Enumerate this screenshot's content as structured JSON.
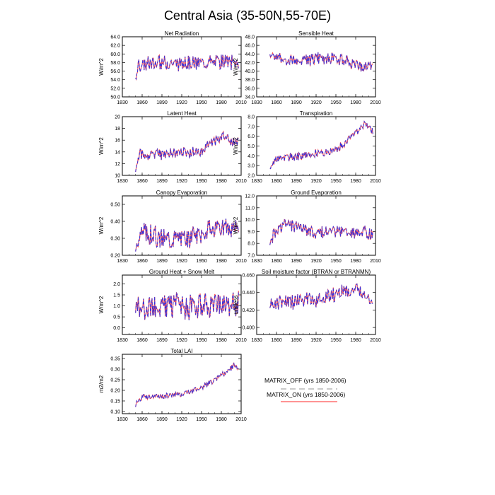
{
  "title": "Central Asia (35-50N,55-70E)",
  "colors": {
    "matrix_off": "#3333dd",
    "matrix_on": "#ff5555"
  },
  "legend": {
    "matrix_off": "MATRIX_OFF (yrs 1850-2006)",
    "matrix_on": "MATRIX_ON (yrs 1850-2006)"
  },
  "chart_data": [
    {
      "type": "line",
      "title": "Net Radiation",
      "ylabel": "W/m^2",
      "xlim": [
        1830,
        2010
      ],
      "ylim": [
        50,
        64
      ],
      "xticks": [
        "1830",
        "1860",
        "1890",
        "1920",
        "1950",
        "1980",
        "2010"
      ],
      "yticks": [
        "50.0",
        "52.0",
        "54.0",
        "56.0",
        "58.0",
        "60.0",
        "62.0",
        "64.0"
      ],
      "x_start": 1850,
      "x_end": 2006,
      "base": [
        [
          1850,
          55.0
        ],
        [
          1855,
          57.5
        ],
        [
          1880,
          57.6
        ],
        [
          1920,
          58.0
        ],
        [
          1950,
          57.8
        ],
        [
          1980,
          58.2
        ],
        [
          2006,
          57.8
        ]
      ],
      "amp": 1.6,
      "drift": 0,
      "series": [
        {
          "name": "MATRIX_OFF"
        },
        {
          "name": "MATRIX_ON"
        }
      ]
    },
    {
      "type": "line",
      "title": "Sensible Heat",
      "ylabel": "W/m^2",
      "xlim": [
        1830,
        2010
      ],
      "ylim": [
        34,
        48
      ],
      "xticks": [
        "1830",
        "1860",
        "1890",
        "1920",
        "1950",
        "1980",
        "2010"
      ],
      "yticks": [
        "34.0",
        "36.0",
        "38.0",
        "40.0",
        "42.0",
        "44.0",
        "46.0",
        "48.0"
      ],
      "x_start": 1850,
      "x_end": 2006,
      "base": [
        [
          1850,
          44.0
        ],
        [
          1870,
          42.8
        ],
        [
          1900,
          42.5
        ],
        [
          1940,
          43.2
        ],
        [
          1970,
          42.0
        ],
        [
          1990,
          40.5
        ],
        [
          2006,
          41.5
        ]
      ],
      "amp": 1.3,
      "drift": 0,
      "series": [
        {
          "name": "MATRIX_OFF"
        },
        {
          "name": "MATRIX_ON"
        }
      ]
    },
    {
      "type": "line",
      "title": "Latent Heat",
      "ylabel": "W/m^2",
      "xlim": [
        1830,
        2010
      ],
      "ylim": [
        10,
        20
      ],
      "xticks": [
        "1830",
        "1860",
        "1890",
        "1920",
        "1950",
        "1980",
        "2010"
      ],
      "yticks": [
        "10",
        "12",
        "14",
        "16",
        "18",
        "20"
      ],
      "x_start": 1850,
      "x_end": 2006,
      "base": [
        [
          1850,
          11.0
        ],
        [
          1855,
          13.5
        ],
        [
          1900,
          13.8
        ],
        [
          1950,
          14.0
        ],
        [
          1960,
          15.3
        ],
        [
          1980,
          16.5
        ],
        [
          2006,
          15.5
        ]
      ],
      "amp": 0.9,
      "drift": 0,
      "series": [
        {
          "name": "MATRIX_OFF"
        },
        {
          "name": "MATRIX_ON"
        }
      ]
    },
    {
      "type": "line",
      "title": "Transpiration",
      "ylabel": "W/m^2",
      "xlim": [
        1830,
        2010
      ],
      "ylim": [
        2,
        8
      ],
      "xticks": [
        "1830",
        "1860",
        "1890",
        "1920",
        "1950",
        "1980",
        "2010"
      ],
      "yticks": [
        "2.0",
        "3.0",
        "4.0",
        "5.0",
        "6.0",
        "7.0",
        "8.0"
      ],
      "x_start": 1850,
      "x_end": 2006,
      "base": [
        [
          1850,
          2.8
        ],
        [
          1860,
          3.7
        ],
        [
          1900,
          4.0
        ],
        [
          1950,
          4.6
        ],
        [
          1975,
          6.0
        ],
        [
          1995,
          7.3
        ],
        [
          2006,
          6.5
        ]
      ],
      "amp": 0.35,
      "drift": 0,
      "series": [
        {
          "name": "MATRIX_OFF"
        },
        {
          "name": "MATRIX_ON"
        }
      ]
    },
    {
      "type": "line",
      "title": "Canopy Evaporation",
      "ylabel": "W/m^2",
      "xlim": [
        1830,
        2010
      ],
      "ylim": [
        0.2,
        0.55
      ],
      "xticks": [
        "1830",
        "1860",
        "1890",
        "1920",
        "1950",
        "1980",
        "2010"
      ],
      "yticks": [
        "0.20",
        "0.30",
        "0.40",
        "0.50"
      ],
      "x_start": 1850,
      "x_end": 2006,
      "base": [
        [
          1850,
          0.25
        ],
        [
          1860,
          0.34
        ],
        [
          1890,
          0.3
        ],
        [
          1940,
          0.31
        ],
        [
          1960,
          0.35
        ],
        [
          1985,
          0.37
        ],
        [
          2006,
          0.33
        ]
      ],
      "amp": 0.055,
      "drift": 0,
      "series": [
        {
          "name": "MATRIX_OFF"
        },
        {
          "name": "MATRIX_ON"
        }
      ]
    },
    {
      "type": "line",
      "title": "Ground Evaporation",
      "ylabel": "W/m^2",
      "xlim": [
        1830,
        2010
      ],
      "ylim": [
        7,
        12
      ],
      "xticks": [
        "1830",
        "1860",
        "1890",
        "1920",
        "1950",
        "1980",
        "2010"
      ],
      "yticks": [
        "7.0",
        "8.0",
        "9.0",
        "10.0",
        "11.0",
        "12.0"
      ],
      "x_start": 1850,
      "x_end": 2006,
      "base": [
        [
          1850,
          8.0
        ],
        [
          1860,
          9.4
        ],
        [
          1880,
          9.6
        ],
        [
          1920,
          9.0
        ],
        [
          1960,
          9.0
        ],
        [
          1990,
          8.8
        ],
        [
          2006,
          8.8
        ]
      ],
      "amp": 0.55,
      "drift": 0,
      "series": [
        {
          "name": "MATRIX_OFF"
        },
        {
          "name": "MATRIX_ON"
        }
      ]
    },
    {
      "type": "line",
      "title": "Ground Heat + Snow Melt",
      "ylabel": "W/m^2",
      "xlim": [
        1830,
        2010
      ],
      "ylim": [
        -0.3,
        2.4
      ],
      "xticks": [
        "1830",
        "1860",
        "1890",
        "1920",
        "1950",
        "1980",
        "2010"
      ],
      "yticks": [
        "0.0",
        "0.5",
        "1.0",
        "1.5",
        "2.0"
      ],
      "x_start": 1850,
      "x_end": 2006,
      "base": [
        [
          1850,
          1.0
        ],
        [
          2006,
          1.0
        ]
      ],
      "amp": 0.55,
      "drift": 0,
      "series": [
        {
          "name": "MATRIX_OFF"
        },
        {
          "name": "MATRIX_ON"
        }
      ]
    },
    {
      "type": "line",
      "title": "Soil moisture factor (BTRAN or BTRANMN)",
      "ylabel": "unitless",
      "xlim": [
        1830,
        2010
      ],
      "ylim": [
        0.392,
        0.46
      ],
      "xticks": [
        "1830",
        "1860",
        "1890",
        "1920",
        "1950",
        "1980",
        "2010"
      ],
      "yticks": [
        "0.400",
        "0.420",
        "0.440",
        "0.460"
      ],
      "x_start": 1850,
      "x_end": 2006,
      "base": [
        [
          1850,
          0.425
        ],
        [
          1870,
          0.43
        ],
        [
          1900,
          0.431
        ],
        [
          1940,
          0.435
        ],
        [
          1960,
          0.442
        ],
        [
          1990,
          0.44
        ],
        [
          2006,
          0.432
        ]
      ],
      "amp": 0.008,
      "drift": 0,
      "series": [
        {
          "name": "MATRIX_OFF"
        },
        {
          "name": "MATRIX_ON"
        }
      ]
    },
    {
      "type": "line",
      "title": "Total LAI",
      "ylabel": "m2/m2",
      "xlim": [
        1830,
        2010
      ],
      "ylim": [
        0.09,
        0.37
      ],
      "xticks": [
        "1830",
        "1860",
        "1890",
        "1920",
        "1950",
        "1980",
        "2010"
      ],
      "yticks": [
        "0.10",
        "0.15",
        "0.20",
        "0.25",
        "0.30",
        "0.35"
      ],
      "x_start": 1850,
      "x_end": 2006,
      "base": [
        [
          1850,
          0.13
        ],
        [
          1860,
          0.17
        ],
        [
          1900,
          0.175
        ],
        [
          1930,
          0.19
        ],
        [
          1960,
          0.23
        ],
        [
          1985,
          0.28
        ],
        [
          2000,
          0.32
        ],
        [
          2006,
          0.3
        ]
      ],
      "amp": 0.012,
      "drift": 0,
      "series": [
        {
          "name": "MATRIX_OFF"
        },
        {
          "name": "MATRIX_ON"
        }
      ]
    }
  ]
}
